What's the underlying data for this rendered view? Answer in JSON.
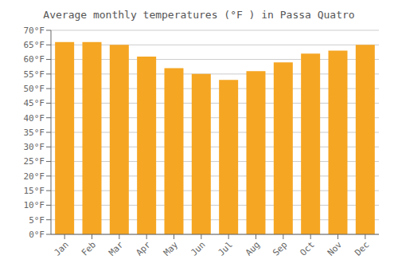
{
  "chart_data": {
    "type": "bar",
    "title": "Average monthly temperatures (°F ) in Passa Quatro",
    "categories": [
      "Jan",
      "Feb",
      "Mar",
      "Apr",
      "May",
      "Jun",
      "Jul",
      "Aug",
      "Sep",
      "Oct",
      "Nov",
      "Dec"
    ],
    "values": [
      66,
      66,
      65,
      61,
      57,
      55,
      53,
      56,
      59,
      62,
      63,
      65
    ],
    "color": "#F5A623",
    "ylim": [
      0,
      70
    ],
    "yticks": [
      {
        "value": 0,
        "label": "0°F"
      },
      {
        "value": 5,
        "label": "5°F"
      },
      {
        "value": 10,
        "label": "10°F"
      },
      {
        "value": 15,
        "label": "15°F"
      },
      {
        "value": 20,
        "label": "20°F"
      },
      {
        "value": 25,
        "label": "25°F"
      },
      {
        "value": 30,
        "label": "30°F"
      },
      {
        "value": 35,
        "label": "35°F"
      },
      {
        "value": 40,
        "label": "40°F"
      },
      {
        "value": 45,
        "label": "45°F"
      },
      {
        "value": 50,
        "label": "50°F"
      },
      {
        "value": 55,
        "label": "55°F"
      },
      {
        "value": 60,
        "label": "60°F"
      },
      {
        "value": 65,
        "label": "65°F"
      },
      {
        "value": 70,
        "label": "70°F"
      }
    ],
    "grid": true
  }
}
